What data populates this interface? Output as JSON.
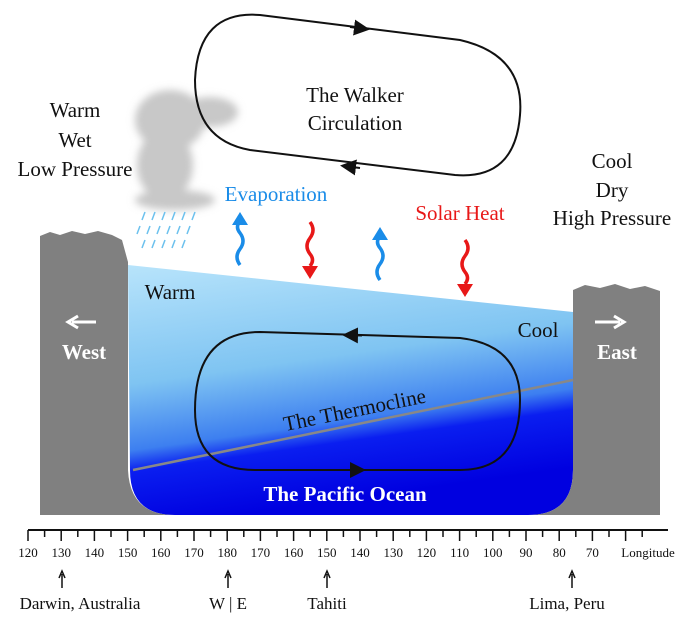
{
  "left_label": [
    "Warm",
    "Wet",
    "Low Pressure"
  ],
  "walker_label": [
    "The Walker",
    "Circulation"
  ],
  "right_label": [
    "Cool",
    "Dry",
    "High Pressure"
  ],
  "evaporation": "Evaporation",
  "solar_heat": "Solar Heat",
  "warm": "Warm",
  "cool": "Cool",
  "west": "West",
  "east": "East",
  "thermocline": "The Thermocline",
  "ocean": "The Pacific Ocean",
  "longitudes": [
    120,
    130,
    140,
    150,
    160,
    170,
    180,
    170,
    160,
    150,
    140,
    130,
    120,
    110,
    100,
    90,
    80,
    70
  ],
  "axis_label": "Longitude",
  "locations": [
    "Darwin, Australia",
    "W | E",
    "Tahiti",
    "Lima, Peru"
  ]
}
